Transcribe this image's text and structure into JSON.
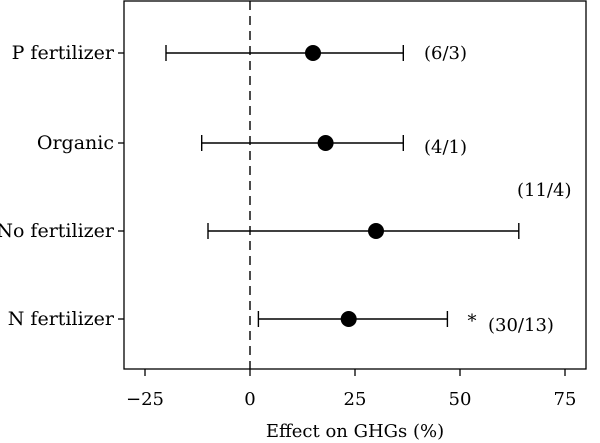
{
  "chart_data": {
    "type": "forest",
    "categories": [
      "P fertilizer",
      "Organic",
      "No fertilizer",
      "N fertilizer"
    ],
    "series": [
      {
        "values": [
          15,
          18,
          30,
          23.5
        ],
        "ci_low": [
          -20,
          -11.5,
          -10,
          2
        ],
        "ci_high": [
          36.5,
          36.5,
          64,
          47
        ]
      }
    ],
    "annotations": [
      "(6/3)",
      "(4/1)",
      "(11/4)",
      "(30/13)"
    ],
    "significance": [
      "",
      "",
      "",
      "*"
    ],
    "xlabel": "Effect on GHGs (%)",
    "ylabel": "",
    "xticks": [
      -25,
      0,
      25,
      50,
      75
    ],
    "xlim": [
      -30,
      80
    ],
    "reference_line": 0,
    "reference_line_style": "dashed",
    "grid": false,
    "legend": "none"
  }
}
